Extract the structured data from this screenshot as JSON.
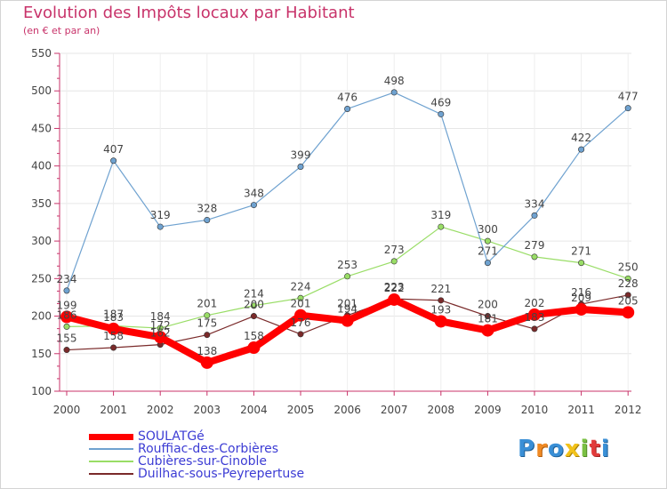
{
  "title": "Evolution des Impôts locaux par Habitant",
  "subtitle": "(en € et par an)",
  "logo": "Proxiti",
  "chart_data": {
    "type": "line",
    "title": "Evolution des Impôts locaux par Habitant",
    "subtitle": "(en € et par an)",
    "xlabel": "",
    "ylabel": "",
    "categories": [
      "2000",
      "2001",
      "2002",
      "2003",
      "2004",
      "2005",
      "2006",
      "2007",
      "2008",
      "2009",
      "2010",
      "2011",
      "2012"
    ],
    "ylim": [
      100,
      550
    ],
    "yticks": [
      100,
      150,
      200,
      250,
      300,
      350,
      400,
      450,
      500,
      550
    ],
    "legend_position": "bottom-left",
    "series": [
      {
        "name": "SOULATGé",
        "color": "#ff0000",
        "values": [
          199,
          183,
          172,
          138,
          158,
          201,
          194,
          222,
          193,
          181,
          202,
          209,
          205
        ]
      },
      {
        "name": "Rouffiac-des-Corbières",
        "color": "#6fa2d0",
        "values": [
          234,
          407,
          319,
          328,
          348,
          399,
          476,
          498,
          469,
          271,
          334,
          422,
          477
        ]
      },
      {
        "name": "Cubières-sur-Cinoble",
        "color": "#99dd66",
        "values": [
          186,
          187,
          184,
          201,
          214,
          224,
          253,
          273,
          319,
          300,
          279,
          271,
          250
        ]
      },
      {
        "name": "Duilhac-sous-Peyrepertuse",
        "color": "#7a2a2a",
        "values": [
          155,
          158,
          162,
          175,
          200,
          176,
          201,
          223,
          221,
          200,
          183,
          216,
          228
        ]
      }
    ]
  }
}
